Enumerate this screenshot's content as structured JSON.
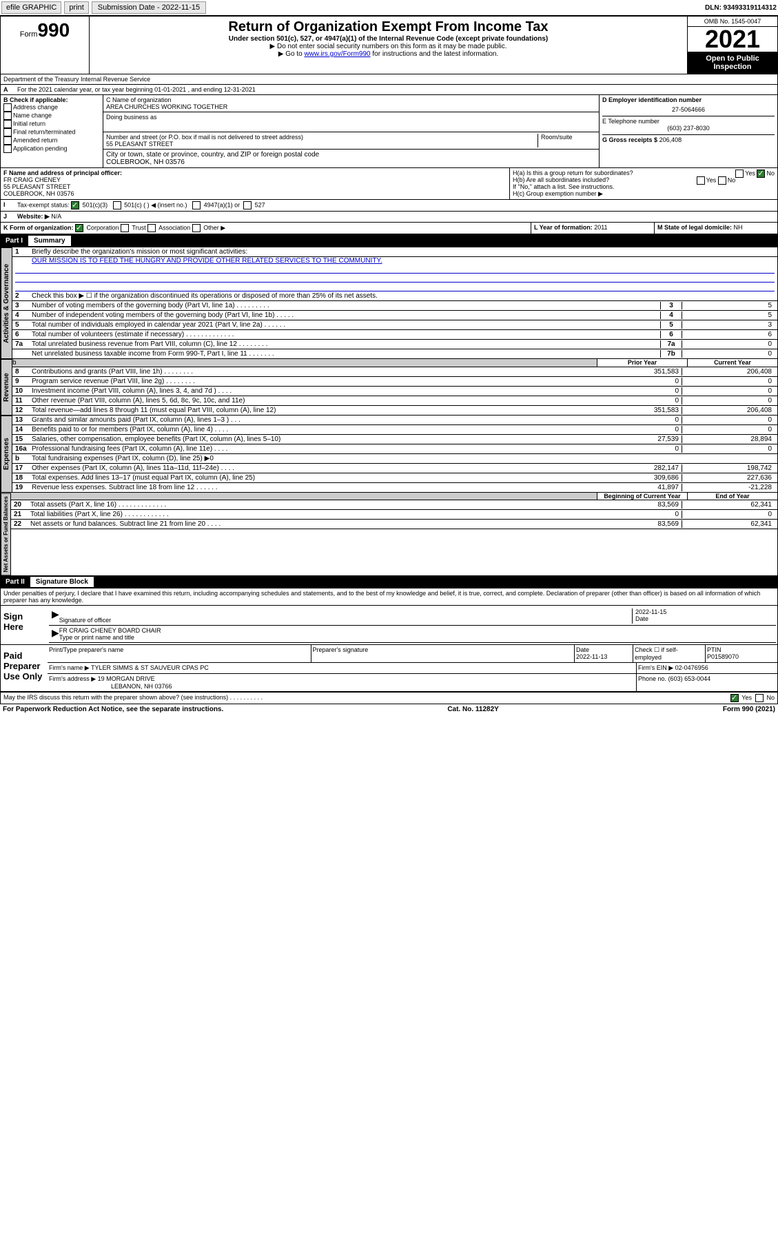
{
  "topbar": {
    "efile": "efile GRAPHIC",
    "print": "print",
    "sub_label": "Submission Date - 2022-11-15",
    "dln": "DLN: 93493319114312"
  },
  "header": {
    "form_word": "Form",
    "form_num": "990",
    "title": "Return of Organization Exempt From Income Tax",
    "subtitle": "Under section 501(c), 527, or 4947(a)(1) of the Internal Revenue Code (except private foundations)",
    "note1": "▶ Do not enter social security numbers on this form as it may be made public.",
    "note2_pre": "▶ Go to ",
    "note2_link": "www.irs.gov/Form990",
    "note2_post": " for instructions and the latest information.",
    "omb": "OMB No. 1545-0047",
    "year": "2021",
    "open": "Open to Public Inspection",
    "dept": "Department of the Treasury Internal Revenue Service"
  },
  "line_a": "For the 2021 calendar year, or tax year beginning 01-01-2021     , and ending 12-31-2021",
  "section_b": {
    "label": "B Check if applicable:",
    "opts": [
      "Address change",
      "Name change",
      "Initial return",
      "Final return/terminated",
      "Amended return",
      "Application pending"
    ]
  },
  "section_c": {
    "name_label": "C Name of organization",
    "name": "AREA CHURCHES WORKING TOGETHER",
    "dba_label": "Doing business as",
    "street_label": "Number and street (or P.O. box if mail is not delivered to street address)",
    "room_label": "Room/suite",
    "street": "55 PLEASANT STREET",
    "city_label": "City or town, state or province, country, and ZIP or foreign postal code",
    "city": "COLEBROOK, NH  03576"
  },
  "section_d": {
    "label": "D Employer identification number",
    "ein": "27-5064666",
    "tel_label": "E Telephone number",
    "tel": "(603) 237-8030",
    "gross_label": "G Gross receipts $",
    "gross": "206,408"
  },
  "section_f": {
    "label": "F  Name and address of principal officer:",
    "name": "FR CRAIG CHENEY",
    "street": "55 PLEASANT STREET",
    "city": "COLEBROOK, NH  03576"
  },
  "section_h": {
    "ha": "H(a)  Is this a group return for subordinates?",
    "hb": "H(b)  Are all subordinates included?",
    "hb_note": "If \"No,\" attach a list. See instructions.",
    "hc": "H(c)  Group exemption number ▶",
    "yes": "Yes",
    "no": "No"
  },
  "section_i": {
    "label": "Tax-exempt status:",
    "o1": "501(c)(3)",
    "o2": "501(c) (    ) ◀ (insert no.)",
    "o3": "4947(a)(1) or",
    "o4": "527"
  },
  "section_j": {
    "label": "Website: ▶",
    "val": "N/A"
  },
  "section_k": {
    "label": "K Form of organization:",
    "o1": "Corporation",
    "o2": "Trust",
    "o3": "Association",
    "o4": "Other ▶"
  },
  "section_l": {
    "label": "L Year of formation: ",
    "val": "2011"
  },
  "section_m": {
    "label": "M State of legal domicile: ",
    "val": "NH"
  },
  "part1": {
    "label": "Part I",
    "title": "Summary"
  },
  "summary": {
    "side1": "Activities & Governance",
    "side2": "Revenue",
    "side3": "Expenses",
    "side4": "Net Assets or Fund Balances",
    "l1_label": "Briefly describe the organization's mission or most significant activities:",
    "l1_text": "OUR MISSION IS TO FEED THE HUNGRY AND PROVIDE OTHER RELATED SERVICES TO THE COMMUNITY.",
    "l2": "Check this box ▶ ☐  if the organization discontinued its operations or disposed of more than 25% of its net assets.",
    "lines_gov": [
      {
        "n": "3",
        "d": "Number of voting members of the governing body (Part VI, line 1a)  .   .   .   .   .   .   .   .   .",
        "box": "3",
        "v": "5"
      },
      {
        "n": "4",
        "d": "Number of independent voting members of the governing body (Part VI, line 1b)  .   .   .   .   .",
        "box": "4",
        "v": "5"
      },
      {
        "n": "5",
        "d": "Total number of individuals employed in calendar year 2021 (Part V, line 2a)  .   .   .   .   .   .",
        "box": "5",
        "v": "3"
      },
      {
        "n": "6",
        "d": "Total number of volunteers (estimate if necessary)  .   .   .   .   .   .   .   .   .   .   .   .   .",
        "box": "6",
        "v": "6"
      },
      {
        "n": "7a",
        "d": "Total unrelated business revenue from Part VIII, column (C), line 12  .   .   .   .   .   .   .   .",
        "box": "7a",
        "v": "0"
      },
      {
        "n": "",
        "d": "Net unrelated business taxable income from Form 990-T, Part I, line 11  .   .   .   .   .   .   .",
        "box": "7b",
        "v": "0"
      }
    ],
    "col_prior": "Prior Year",
    "col_current": "Current Year",
    "rev": [
      {
        "n": "8",
        "d": "Contributions and grants (Part VIII, line 1h)   .   .   .   .   .   .   .   .",
        "p": "351,583",
        "c": "206,408"
      },
      {
        "n": "9",
        "d": "Program service revenue (Part VIII, line 2g)   .   .   .   .   .   .   .   .",
        "p": "0",
        "c": "0"
      },
      {
        "n": "10",
        "d": "Investment income (Part VIII, column (A), lines 3, 4, and 7d )   .   .   .   .",
        "p": "0",
        "c": "0"
      },
      {
        "n": "11",
        "d": "Other revenue (Part VIII, column (A), lines 5, 6d, 8c, 9c, 10c, and 11e)",
        "p": "0",
        "c": "0"
      },
      {
        "n": "12",
        "d": "Total revenue—add lines 8 through 11 (must equal Part VIII, column (A), line 12)",
        "p": "351,583",
        "c": "206,408"
      }
    ],
    "exp": [
      {
        "n": "13",
        "d": "Grants and similar amounts paid (Part IX, column (A), lines 1–3 )   .   .   .",
        "p": "0",
        "c": "0"
      },
      {
        "n": "14",
        "d": "Benefits paid to or for members (Part IX, column (A), line 4)   .   .   .   .",
        "p": "0",
        "c": "0"
      },
      {
        "n": "15",
        "d": "Salaries, other compensation, employee benefits (Part IX, column (A), lines 5–10)",
        "p": "27,539",
        "c": "28,894"
      },
      {
        "n": "16a",
        "d": "Professional fundraising fees (Part IX, column (A), line 11e)   .   .   .   .",
        "p": "0",
        "c": "0"
      },
      {
        "n": "b",
        "d": "Total fundraising expenses (Part IX, column (D), line 25) ▶0",
        "p": "",
        "c": "",
        "gray": true
      },
      {
        "n": "17",
        "d": "Other expenses (Part IX, column (A), lines 11a–11d, 11f–24e)  .   .   .   .",
        "p": "282,147",
        "c": "198,742"
      },
      {
        "n": "18",
        "d": "Total expenses. Add lines 13–17 (must equal Part IX, column (A), line 25)",
        "p": "309,686",
        "c": "227,636"
      },
      {
        "n": "19",
        "d": "Revenue less expenses. Subtract line 18 from line 12  .   .   .   .   .   .",
        "p": "41,897",
        "c": "-21,228"
      }
    ],
    "col_begin": "Beginning of Current Year",
    "col_end": "End of Year",
    "net": [
      {
        "n": "20",
        "d": "Total assets (Part X, line 16)  .   .   .   .   .   .   .   .   .   .   .   .   .",
        "p": "83,569",
        "c": "62,341"
      },
      {
        "n": "21",
        "d": "Total liabilities (Part X, line 26)  .   .   .   .   .   .   .   .   .   .   .   .",
        "p": "0",
        "c": "0"
      },
      {
        "n": "22",
        "d": "Net assets or fund balances. Subtract line 21 from line 20   .   .   .   .",
        "p": "83,569",
        "c": "62,341"
      }
    ]
  },
  "part2": {
    "label": "Part II",
    "title": "Signature Block"
  },
  "penalties": "Under penalties of perjury, I declare that I have examined this return, including accompanying schedules and statements, and to the best of my knowledge and belief, it is true, correct, and complete. Declaration of preparer (other than officer) is based on all information of which preparer has any knowledge.",
  "sign": {
    "here": "Sign Here",
    "sig_officer": "Signature of officer",
    "date": "Date",
    "sig_date": "2022-11-15",
    "name": "FR CRAIG CHENEY  BOARD CHAIR",
    "name_label": "Type or print name and title"
  },
  "preparer": {
    "title": "Paid Preparer Use Only",
    "col1": "Print/Type preparer's name",
    "col2": "Preparer's signature",
    "col3": "Date",
    "col3v": "2022-11-13",
    "col4": "Check ☐ if self-employed",
    "col5": "PTIN",
    "col5v": "P01589070",
    "firm_label": "Firm's name    ▶",
    "firm": "TYLER SIMMS & ST SAUVEUR CPAS PC",
    "ein_label": "Firm's EIN ▶",
    "ein": "02-0476956",
    "addr_label": "Firm's address ▶",
    "addr1": "19 MORGAN DRIVE",
    "addr2": "LEBANON, NH  03766",
    "phone_label": "Phone no.",
    "phone": "(603) 653-0044"
  },
  "discuss": {
    "q": "May the IRS discuss this return with the preparer shown above? (see instructions)   .    .    .    .    .    .    .    .    .    .",
    "yes": "Yes",
    "no": "No"
  },
  "footer": {
    "l": "For Paperwork Reduction Act Notice, see the separate instructions.",
    "c": "Cat. No. 11282Y",
    "r": "Form 990 (2021)"
  }
}
